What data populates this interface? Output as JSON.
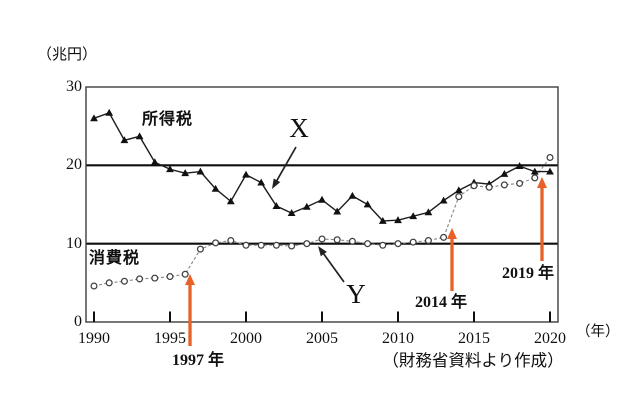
{
  "page": {
    "unit_label": "（兆円）",
    "axis_year_label": "（年）",
    "source_note": "（財務省資料より作成）"
  },
  "annotations": {
    "x_marker": "X",
    "y_marker": "Y",
    "event_1997": "1997 年",
    "event_2014": "2014 年",
    "event_2019": "2019 年"
  },
  "colors": {
    "accent_orange": "#e86126",
    "income_line": "#1c1c1c",
    "consumption_line": "#8a8a8a",
    "reference_line": "#0f0f0f"
  },
  "chart_data": {
    "type": "line",
    "title": "",
    "ylabel": "兆円",
    "xlabel": "年",
    "x": [
      1990,
      1991,
      1992,
      1993,
      1994,
      1995,
      1996,
      1997,
      1998,
      1999,
      2000,
      2001,
      2002,
      2003,
      2004,
      2005,
      2006,
      2007,
      2008,
      2009,
      2010,
      2011,
      2012,
      2013,
      2014,
      2015,
      2016,
      2017,
      2018,
      2019,
      2020
    ],
    "series": [
      {
        "name": "所得税",
        "marker": "filled-triangle",
        "line_style": "solid",
        "color": "#1c1c1c",
        "values": [
          26.0,
          26.7,
          23.2,
          23.7,
          20.4,
          19.5,
          19.0,
          19.2,
          17.0,
          15.4,
          18.8,
          17.8,
          14.8,
          13.9,
          14.7,
          15.6,
          14.1,
          16.1,
          15.0,
          12.9,
          13.0,
          13.5,
          14.0,
          15.5,
          16.8,
          17.8,
          17.6,
          18.9,
          19.9,
          19.2,
          19.2
        ]
      },
      {
        "name": "消費税",
        "marker": "open-circle",
        "line_style": "dashed",
        "color": "#8a8a8a",
        "values": [
          4.6,
          5.0,
          5.2,
          5.5,
          5.6,
          5.8,
          6.1,
          9.3,
          10.1,
          10.4,
          9.8,
          9.8,
          9.8,
          9.7,
          10.0,
          10.6,
          10.5,
          10.3,
          10.0,
          9.8,
          10.0,
          10.2,
          10.4,
          10.8,
          16.0,
          17.4,
          17.2,
          17.5,
          17.7,
          18.4,
          21.0
        ]
      }
    ],
    "xticks": [
      1990,
      1995,
      2000,
      2005,
      2010,
      2015,
      2020
    ],
    "yticks": [
      0,
      10,
      20,
      30
    ],
    "xlim": [
      1989.5,
      2020.5
    ],
    "ylim": [
      0,
      30
    ],
    "emphasized_hlines": [
      10,
      20
    ],
    "grid": false,
    "legend_position": "inline-labels",
    "annotations": [
      {
        "text": "X",
        "arrow_color": "black",
        "points_to_series": "所得税",
        "near_year": 2002
      },
      {
        "text": "Y",
        "arrow_color": "black",
        "points_to_series": "消費税",
        "near_year": 2005
      },
      {
        "text": "1997 年",
        "arrow_color": "orange",
        "near_year": 1997
      },
      {
        "text": "2014 年",
        "arrow_color": "orange",
        "near_year": 2014
      },
      {
        "text": "2019 年",
        "arrow_color": "orange",
        "near_year": 2019
      }
    ]
  }
}
